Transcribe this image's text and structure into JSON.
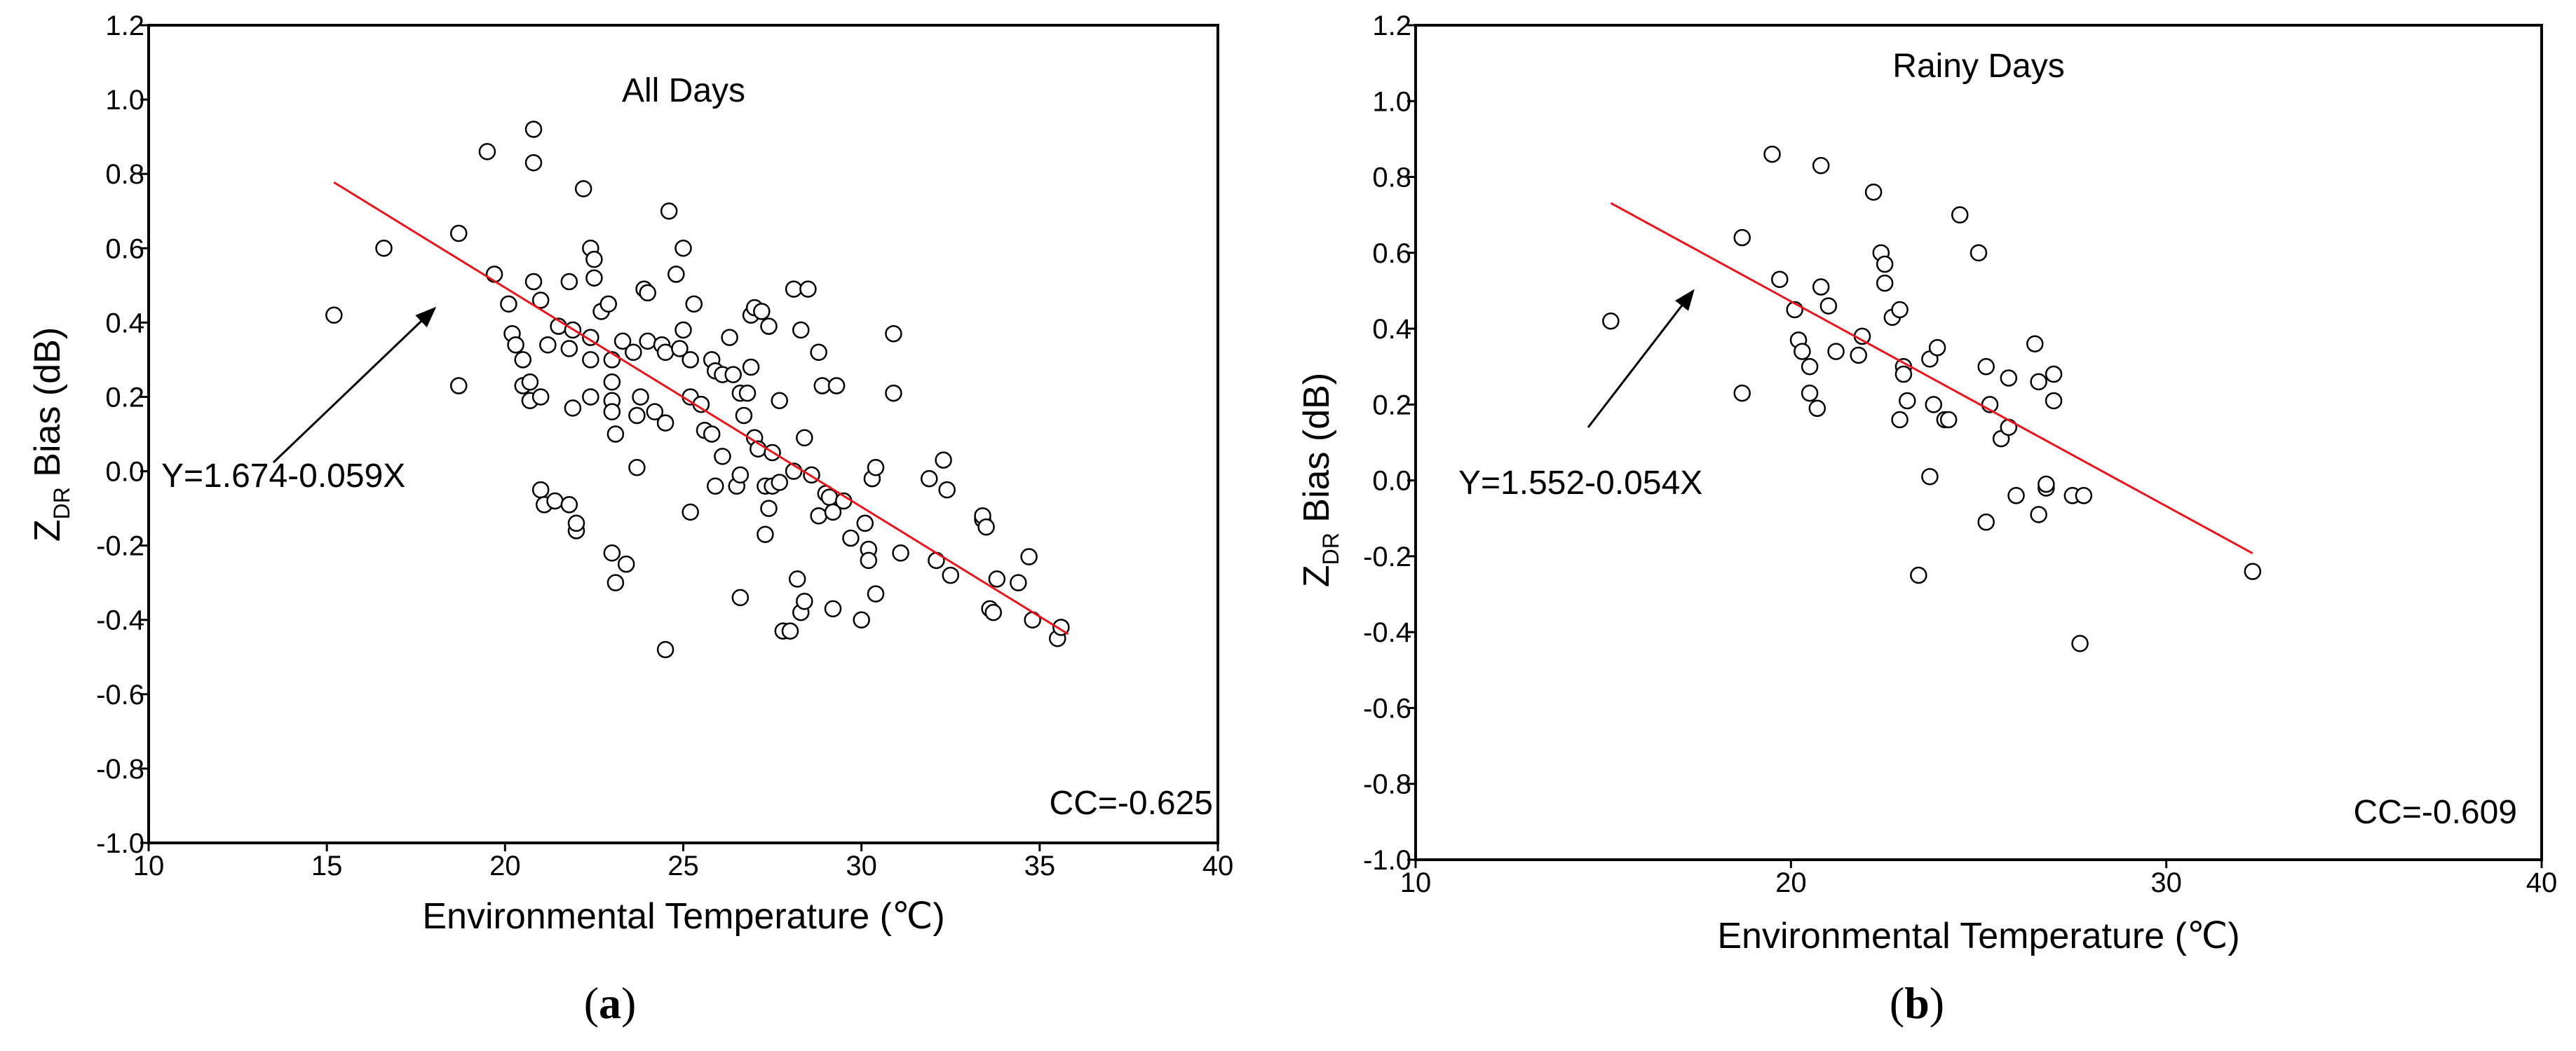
{
  "figure": {
    "panel_a_label": "a",
    "panel_b_label": "b",
    "paren_open": "(",
    "paren_close": ")"
  },
  "chart_data": [
    {
      "type": "scatter",
      "panel": "a",
      "title": "All Days",
      "xlabel": "Environmental Temperature (℃)",
      "ylabel_main": "Z",
      "ylabel_sub": "DR",
      "ylabel_rest": " Bias (dB)",
      "xlim": [
        10,
        40
      ],
      "ylim": [
        -1.0,
        1.2
      ],
      "xticks": [
        10,
        15,
        20,
        25,
        30,
        35,
        40
      ],
      "xtick_labels": [
        "10",
        "15",
        "20",
        "25",
        "30",
        "35",
        "40"
      ],
      "yticks": [
        -1.0,
        -0.8,
        -0.6,
        -0.4,
        -0.2,
        0.0,
        0.2,
        0.4,
        0.6,
        0.8,
        1.0,
        1.2
      ],
      "ytick_labels": [
        "-1.0",
        "-0.8",
        "-0.6",
        "-0.4",
        "-0.2",
        "0.0",
        "0.2",
        "0.4",
        "0.6",
        "0.8",
        "1.0",
        "1.2"
      ],
      "fit_equation": "Y=1.674-0.059X",
      "correlation": "CC=-0.625",
      "fit_line": {
        "x_start": 15.2,
        "x_end": 35.8,
        "intercept": 1.674,
        "slope": -0.059,
        "color": "#e8141a"
      },
      "points": [
        [
          15.2,
          0.42
        ],
        [
          16.6,
          0.6
        ],
        [
          18.7,
          0.64
        ],
        [
          18.7,
          0.23
        ],
        [
          19.5,
          0.86
        ],
        [
          19.7,
          0.53
        ],
        [
          20.1,
          0.45
        ],
        [
          20.2,
          0.37
        ],
        [
          20.3,
          0.34
        ],
        [
          20.5,
          0.3
        ],
        [
          20.5,
          0.23
        ],
        [
          20.7,
          0.24
        ],
        [
          20.7,
          0.19
        ],
        [
          20.8,
          0.92
        ],
        [
          20.8,
          0.83
        ],
        [
          20.8,
          0.51
        ],
        [
          21.0,
          0.46
        ],
        [
          21.0,
          0.2
        ],
        [
          21.2,
          0.34
        ],
        [
          21.0,
          -0.05
        ],
        [
          21.1,
          -0.09
        ],
        [
          21.4,
          -0.08
        ],
        [
          21.5,
          0.39
        ],
        [
          21.8,
          0.51
        ],
        [
          21.8,
          0.33
        ],
        [
          21.9,
          0.38
        ],
        [
          21.9,
          0.17
        ],
        [
          21.8,
          -0.09
        ],
        [
          22.0,
          -0.16
        ],
        [
          22.0,
          -0.14
        ],
        [
          22.2,
          0.76
        ],
        [
          22.4,
          0.6
        ],
        [
          22.5,
          0.57
        ],
        [
          22.5,
          0.52
        ],
        [
          22.4,
          0.36
        ],
        [
          22.4,
          0.3
        ],
        [
          22.4,
          0.2
        ],
        [
          22.7,
          0.43
        ],
        [
          22.9,
          0.45
        ],
        [
          23.0,
          0.3
        ],
        [
          23.0,
          0.24
        ],
        [
          23.0,
          0.19
        ],
        [
          23.0,
          0.16
        ],
        [
          23.1,
          0.1
        ],
        [
          23.0,
          -0.22
        ],
        [
          23.1,
          -0.3
        ],
        [
          23.4,
          -0.25
        ],
        [
          23.3,
          0.35
        ],
        [
          23.6,
          0.32
        ],
        [
          23.7,
          0.15
        ],
        [
          23.7,
          0.01
        ],
        [
          23.8,
          0.2
        ],
        [
          23.9,
          0.49
        ],
        [
          24.0,
          0.48
        ],
        [
          24.0,
          0.35
        ],
        [
          24.2,
          0.16
        ],
        [
          24.4,
          0.34
        ],
        [
          24.5,
          0.13
        ],
        [
          24.5,
          0.32
        ],
        [
          24.6,
          0.7
        ],
        [
          24.5,
          -0.48
        ],
        [
          24.8,
          0.53
        ],
        [
          24.9,
          0.33
        ],
        [
          25.0,
          0.38
        ],
        [
          25.0,
          0.6
        ],
        [
          25.2,
          0.3
        ],
        [
          25.2,
          0.2
        ],
        [
          25.3,
          0.45
        ],
        [
          25.2,
          -0.11
        ],
        [
          25.5,
          0.18
        ],
        [
          25.6,
          0.11
        ],
        [
          25.8,
          0.3
        ],
        [
          25.8,
          0.1
        ],
        [
          25.9,
          0.27
        ],
        [
          25.9,
          -0.04
        ],
        [
          26.1,
          0.04
        ],
        [
          26.1,
          0.26
        ],
        [
          26.3,
          0.36
        ],
        [
          26.4,
          0.26
        ],
        [
          26.5,
          -0.04
        ],
        [
          26.6,
          0.21
        ],
        [
          26.6,
          -0.01
        ],
        [
          26.6,
          -0.34
        ],
        [
          26.7,
          0.15
        ],
        [
          26.8,
          0.21
        ],
        [
          26.9,
          0.42
        ],
        [
          26.9,
          0.28
        ],
        [
          27.0,
          0.44
        ],
        [
          27.0,
          0.09
        ],
        [
          27.1,
          0.06
        ],
        [
          27.2,
          0.43
        ],
        [
          27.4,
          0.39
        ],
        [
          27.3,
          -0.04
        ],
        [
          27.4,
          -0.1
        ],
        [
          27.5,
          0.05
        ],
        [
          27.5,
          -0.04
        ],
        [
          27.3,
          -0.17
        ],
        [
          27.7,
          0.19
        ],
        [
          27.7,
          -0.03
        ],
        [
          27.8,
          -0.43
        ],
        [
          28.0,
          -0.43
        ],
        [
          28.1,
          0.49
        ],
        [
          28.1,
          0.0
        ],
        [
          28.2,
          -0.29
        ],
        [
          28.3,
          0.38
        ],
        [
          28.3,
          -0.38
        ],
        [
          28.4,
          0.09
        ],
        [
          28.4,
          -0.35
        ],
        [
          28.5,
          0.49
        ],
        [
          28.6,
          -0.01
        ],
        [
          28.8,
          0.32
        ],
        [
          28.8,
          -0.12
        ],
        [
          28.9,
          0.23
        ],
        [
          29.0,
          -0.06
        ],
        [
          29.1,
          -0.07
        ],
        [
          29.2,
          -0.37
        ],
        [
          29.2,
          -0.11
        ],
        [
          29.3,
          0.23
        ],
        [
          29.5,
          -0.08
        ],
        [
          29.7,
          -0.18
        ],
        [
          30.0,
          -0.4
        ],
        [
          30.1,
          -0.14
        ],
        [
          30.2,
          -0.21
        ],
        [
          30.2,
          -0.24
        ],
        [
          30.3,
          -0.02
        ],
        [
          30.4,
          0.01
        ],
        [
          30.4,
          -0.33
        ],
        [
          30.9,
          0.37
        ],
        [
          30.9,
          0.21
        ],
        [
          31.1,
          -0.22
        ],
        [
          31.9,
          -0.02
        ],
        [
          32.1,
          -0.24
        ],
        [
          32.3,
          0.03
        ],
        [
          32.4,
          -0.05
        ],
        [
          32.5,
          -0.28
        ],
        [
          33.4,
          -0.13
        ],
        [
          33.4,
          -0.12
        ],
        [
          33.5,
          -0.15
        ],
        [
          33.6,
          -0.37
        ],
        [
          33.7,
          -0.38
        ],
        [
          33.8,
          -0.29
        ],
        [
          34.4,
          -0.3
        ],
        [
          34.7,
          -0.23
        ],
        [
          34.8,
          -0.4
        ],
        [
          35.5,
          -0.45
        ],
        [
          35.6,
          -0.42
        ]
      ]
    },
    {
      "type": "scatter",
      "panel": "b",
      "title": "Rainy Days",
      "xlabel": "Environmental Temperature (℃)",
      "ylabel_main": "Z",
      "ylabel_sub": "DR",
      "ylabel_rest": " Bias (dB)",
      "xlim": [
        10,
        40
      ],
      "ylim": [
        -1.0,
        1.2
      ],
      "xticks": [
        10,
        20,
        30,
        40
      ],
      "xtick_labels": [
        "10",
        "20",
        "30",
        "40"
      ],
      "yticks": [
        -1.0,
        -0.8,
        -0.6,
        -0.4,
        -0.2,
        0.0,
        0.2,
        0.4,
        0.6,
        0.8,
        1.0,
        1.2
      ],
      "ytick_labels": [
        "-1.0",
        "-0.8",
        "-0.6",
        "-0.4",
        "-0.2",
        "0.0",
        "0.2",
        "0.4",
        "0.6",
        "0.8",
        "1.0",
        "1.2"
      ],
      "fit_equation": "Y=1.552-0.054X",
      "correlation": "CC=-0.609",
      "fit_line": {
        "x_start": 15.2,
        "x_end": 32.3,
        "intercept": 1.552,
        "slope": -0.054,
        "color": "#e8141a"
      },
      "points": [
        [
          15.2,
          0.42
        ],
        [
          18.7,
          0.64
        ],
        [
          18.7,
          0.23
        ],
        [
          19.5,
          0.86
        ],
        [
          19.7,
          0.53
        ],
        [
          20.1,
          0.45
        ],
        [
          20.2,
          0.37
        ],
        [
          20.3,
          0.34
        ],
        [
          20.5,
          0.3
        ],
        [
          20.5,
          0.23
        ],
        [
          20.7,
          0.19
        ],
        [
          20.8,
          0.83
        ],
        [
          20.8,
          0.51
        ],
        [
          21.0,
          0.46
        ],
        [
          21.2,
          0.34
        ],
        [
          21.8,
          0.33
        ],
        [
          21.9,
          0.38
        ],
        [
          22.2,
          0.76
        ],
        [
          22.4,
          0.6
        ],
        [
          22.5,
          0.57
        ],
        [
          22.5,
          0.52
        ],
        [
          22.7,
          0.43
        ],
        [
          22.9,
          0.45
        ],
        [
          23.0,
          0.3
        ],
        [
          23.0,
          0.28
        ],
        [
          23.1,
          0.21
        ],
        [
          22.9,
          0.16
        ],
        [
          23.4,
          -0.25
        ],
        [
          23.7,
          0.32
        ],
        [
          23.7,
          0.01
        ],
        [
          23.8,
          0.2
        ],
        [
          23.9,
          0.35
        ],
        [
          24.1,
          0.16
        ],
        [
          24.2,
          0.16
        ],
        [
          24.5,
          0.7
        ],
        [
          25.0,
          0.6
        ],
        [
          25.2,
          0.3
        ],
        [
          25.3,
          0.2
        ],
        [
          25.2,
          -0.11
        ],
        [
          25.6,
          0.11
        ],
        [
          25.8,
          0.27
        ],
        [
          25.8,
          0.14
        ],
        [
          26.0,
          -0.04
        ],
        [
          26.5,
          0.36
        ],
        [
          26.6,
          0.26
        ],
        [
          26.6,
          -0.09
        ],
        [
          26.8,
          -0.02
        ],
        [
          26.8,
          -0.01
        ],
        [
          27.0,
          0.21
        ],
        [
          27.0,
          0.28
        ],
        [
          27.5,
          -0.04
        ],
        [
          27.7,
          -0.43
        ],
        [
          27.8,
          -0.04
        ],
        [
          32.3,
          -0.24
        ]
      ]
    }
  ]
}
